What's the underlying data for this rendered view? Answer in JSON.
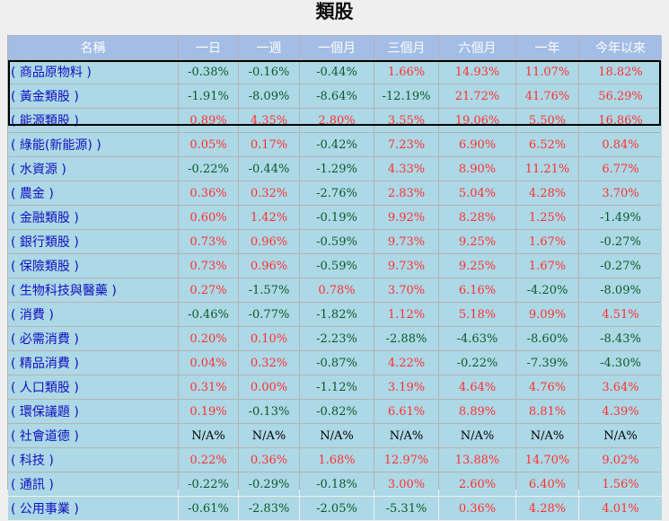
{
  "title": "類股",
  "columns": [
    "名稱",
    "一日",
    "一週",
    "一個月",
    "三個月",
    "六個月",
    "一年",
    "今年以來"
  ],
  "rows": [
    {
      "name": "( 商品原物料 )",
      "values": [
        "-0.38%",
        "-0.16%",
        "-0.44%",
        "1.66%",
        "14.93%",
        "11.07%",
        "18.82%"
      ]
    },
    {
      "name": "( 黃金類股 )",
      "values": [
        "-1.91%",
        "-8.09%",
        "-8.64%",
        "-12.19%",
        "21.72%",
        "41.76%",
        "56.29%"
      ]
    },
    {
      "name": "( 能源類股 )",
      "values": [
        "0.89%",
        "4.35%",
        "2.80%",
        "3.55%",
        "19.06%",
        "5.50%",
        "16.86%"
      ]
    },
    {
      "name": "( 綠能(新能源) )",
      "values": [
        "0.05%",
        "0.17%",
        "-0.42%",
        "7.23%",
        "6.90%",
        "6.52%",
        "0.84%"
      ]
    },
    {
      "name": "( 水資源 )",
      "values": [
        "-0.22%",
        "-0.44%",
        "-1.29%",
        "4.33%",
        "8.90%",
        "11.21%",
        "6.77%"
      ]
    },
    {
      "name": "( 農金 )",
      "values": [
        "0.36%",
        "0.32%",
        "-2.76%",
        "2.83%",
        "5.04%",
        "4.28%",
        "3.70%"
      ]
    },
    {
      "name": "( 金融類股 )",
      "values": [
        "0.60%",
        "1.42%",
        "-0.19%",
        "9.92%",
        "8.28%",
        "1.25%",
        "-1.49%"
      ]
    },
    {
      "name": "( 銀行類股 )",
      "values": [
        "0.73%",
        "0.96%",
        "-0.59%",
        "9.73%",
        "9.25%",
        "1.67%",
        "-0.27%"
      ]
    },
    {
      "name": "( 保險類股 )",
      "values": [
        "0.73%",
        "0.96%",
        "-0.59%",
        "9.73%",
        "9.25%",
        "1.67%",
        "-0.27%"
      ]
    },
    {
      "name": "( 生物科技與醫藥 )",
      "values": [
        "0.27%",
        "-1.57%",
        "0.78%",
        "3.70%",
        "6.16%",
        "-4.20%",
        "-8.09%"
      ]
    },
    {
      "name": "( 消費 )",
      "values": [
        "-0.46%",
        "-0.77%",
        "-1.82%",
        "1.12%",
        "5.18%",
        "9.09%",
        "4.51%"
      ]
    },
    {
      "name": "( 必需消費 )",
      "values": [
        "0.20%",
        "0.10%",
        "-2.23%",
        "-2.88%",
        "-4.63%",
        "-8.60%",
        "-8.43%"
      ]
    },
    {
      "name": "( 精品消費 )",
      "values": [
        "0.04%",
        "0.32%",
        "-0.87%",
        "4.22%",
        "-0.22%",
        "-7.39%",
        "-4.30%"
      ]
    },
    {
      "name": "( 人口類股 )",
      "values": [
        "0.31%",
        "0.00%",
        "-1.12%",
        "3.19%",
        "4.64%",
        "4.76%",
        "3.64%"
      ]
    },
    {
      "name": "( 環保議題 )",
      "values": [
        "0.19%",
        "-0.13%",
        "-0.82%",
        "6.61%",
        "8.89%",
        "8.81%",
        "4.39%"
      ]
    },
    {
      "name": "( 社會道德 )",
      "values": [
        "N/A%",
        "N/A%",
        "N/A%",
        "N/A%",
        "N/A%",
        "N/A%",
        "N/A%"
      ]
    },
    {
      "name": "( 科技 )",
      "values": [
        "0.22%",
        "0.36%",
        "1.68%",
        "12.97%",
        "13.88%",
        "14.70%",
        "9.02%"
      ]
    },
    {
      "name": "( 通訊 )",
      "values": [
        "-0.22%",
        "-0.29%",
        "-0.18%",
        "3.00%",
        "2.60%",
        "6.40%",
        "1.56%"
      ]
    },
    {
      "name": "( 公用事業 )",
      "values": [
        "-0.61%",
        "-2.83%",
        "-2.05%",
        "-5.31%",
        "0.36%",
        "4.28%",
        "4.01%"
      ]
    }
  ],
  "colors": {
    "positive": "#ff3030",
    "negative": "#0a5a2a",
    "na": "#000000",
    "name": "#1010c0",
    "header_bg": "#a3bde6",
    "cell_bg": "#add8e6"
  }
}
